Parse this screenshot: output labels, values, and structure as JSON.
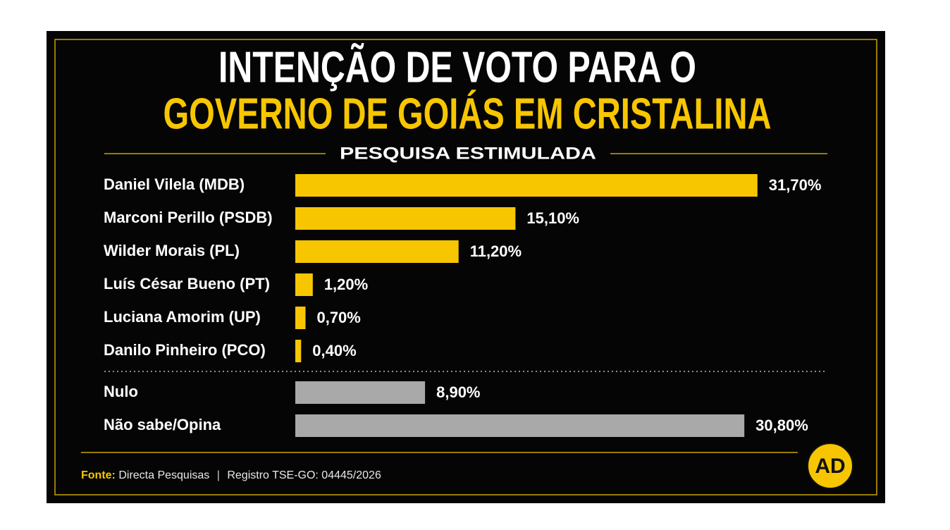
{
  "chart_data": {
    "type": "bar",
    "orientation": "horizontal",
    "title": "INTENÇÃO DE VOTO PARA O",
    "title_highlight": "GOVERNO DE GOIÁS EM CRISTALINA",
    "subtitle": "PESQUISA ESTIMULADA",
    "xlim": [
      0,
      32
    ],
    "groups": [
      {
        "color": "#f7c600",
        "categories": [
          "Daniel Vilela (MDB)",
          "Marconi Perillo (PSDB)",
          "Wilder Morais (PL)",
          "Luís César Bueno (PT)",
          "Luciana Amorim (UP)",
          "Danilo Pinheiro (PCO)"
        ],
        "values": [
          31.7,
          15.1,
          11.2,
          1.2,
          0.7,
          0.4
        ],
        "value_labels": [
          "31,70%",
          "15,10%",
          "11,20%",
          "1,20%",
          "0,70%",
          "0,40%"
        ]
      },
      {
        "color": "#a9a9a9",
        "categories": [
          "Nulo",
          "Não sabe/Opina"
        ],
        "values": [
          8.9,
          30.8
        ],
        "value_labels": [
          "8,90%",
          "30,80%"
        ]
      }
    ],
    "source_label": "Fonte:",
    "source": "Directa Pesquisas",
    "registry": "Registro TSE-GO: 04445/2026",
    "logo": "AD"
  }
}
